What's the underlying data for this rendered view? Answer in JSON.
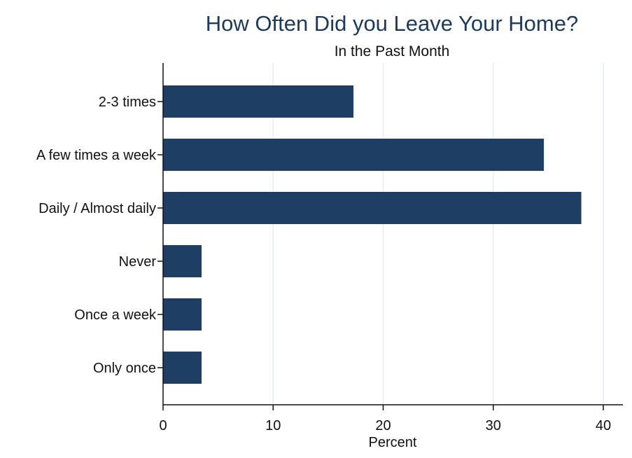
{
  "chart_data": {
    "type": "bar",
    "orientation": "horizontal",
    "title": "How Often Did you Leave Your Home?",
    "subtitle": "In the Past Month",
    "xlabel": "Percent",
    "ylabel": "",
    "categories": [
      "2-3 times",
      "A few times a week",
      "Daily / Almost daily",
      "Never",
      "Once a week",
      "Only once"
    ],
    "values": [
      17.3,
      34.6,
      38.0,
      3.5,
      3.5,
      3.5
    ],
    "xlim": [
      0,
      40
    ],
    "xticks": [
      "0",
      "10",
      "20",
      "30",
      "40"
    ],
    "grid": true,
    "bar_color": "#1e3f63",
    "legend": "none"
  }
}
